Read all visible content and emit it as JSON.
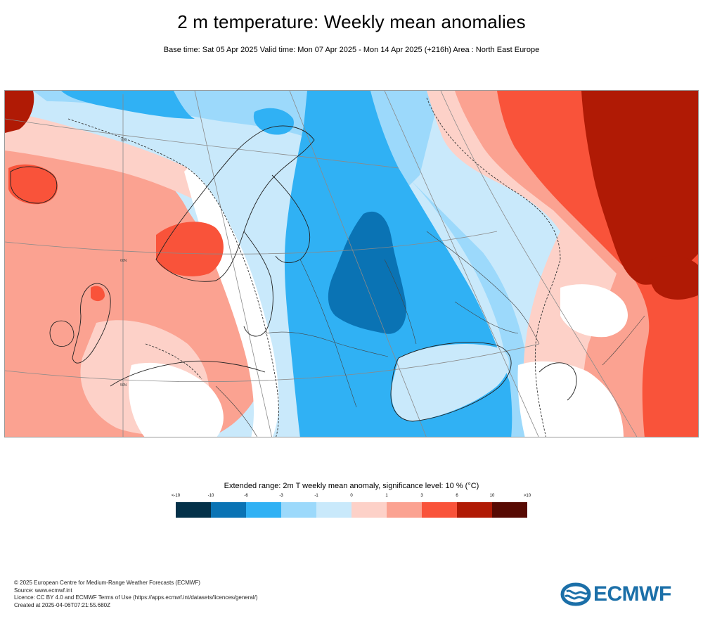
{
  "title": "2 m temperature: Weekly mean anomalies",
  "subtitle": "Base time: Sat 05 Apr 2025 Valid time: Mon 07 Apr 2025 - Mon 14 Apr 2025 (+216h) Area : North East Europe",
  "map": {
    "area": "North East Europe",
    "grid_labels": [
      "70N",
      "60N",
      "50N"
    ]
  },
  "legend": {
    "title": "Extended range: 2m T weekly mean anomaly, significance level: 10 % (°C)",
    "ticks": [
      "<-10",
      "-10",
      "-6",
      "-3",
      "-1",
      "0",
      "1",
      "3",
      "6",
      "10",
      ">10"
    ],
    "colors": [
      "#043149",
      "#0a73b4",
      "#30b1f4",
      "#9cd9fb",
      "#c9e9fb",
      "#ffffff",
      "#fdd1c8",
      "#fba291",
      "#f9533a",
      "#b01a05",
      "#570a03"
    ]
  },
  "footer": {
    "lines": [
      "© 2025 European Centre for Medium-Range Weather Forecasts (ECMWF)",
      "Source: www.ecmwf.int",
      "Licence: CC BY 4.0 and ECMWF Terms of Use (https://apps.ecmwf.int/datasets/licences/general/)",
      "Created at 2025-04-06T07:21:55.680Z"
    ]
  },
  "logo": {
    "text": "ECMWF",
    "color": "#1b6fa8"
  }
}
